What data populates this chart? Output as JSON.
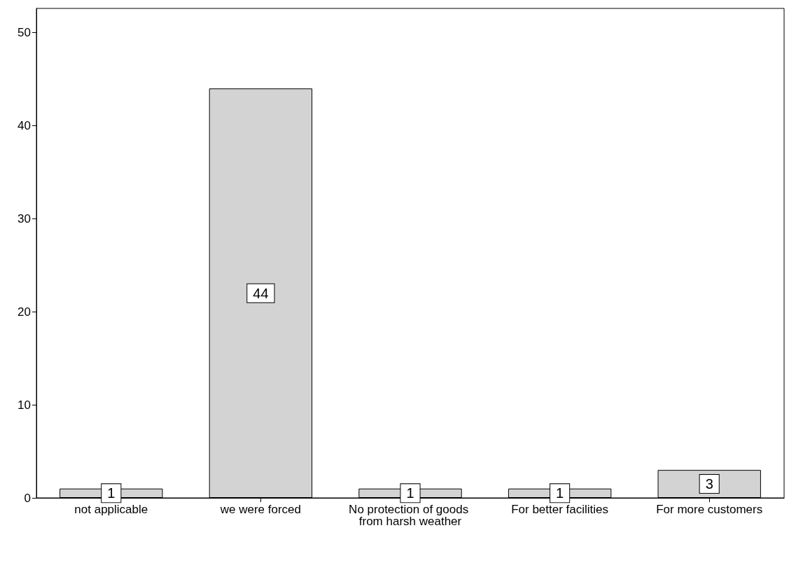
{
  "chart_data": {
    "type": "bar",
    "categories": [
      "not applicable",
      "we were forced",
      "No protection of goods from harsh weather",
      "For better facilities",
      "For more customers"
    ],
    "values": [
      1,
      44,
      1,
      1,
      3
    ],
    "color": "#d3d3d3",
    "ylim": [
      0,
      52.6
    ],
    "yticks": [
      0,
      10,
      20,
      30,
      40,
      50
    ],
    "grid": false,
    "data_labels": true
  }
}
